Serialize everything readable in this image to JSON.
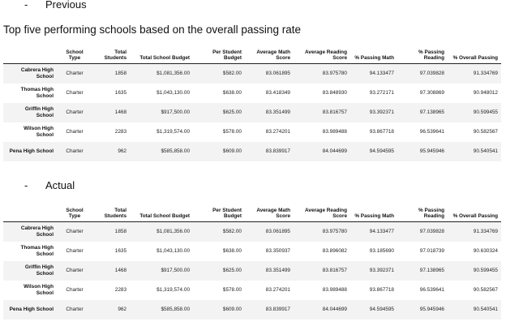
{
  "sections": [
    {
      "bullet": "Previous",
      "heading": "Top five performing schools based on the overall passing rate",
      "columns": [
        "",
        "School Type",
        "Total Students",
        "Total School Budget",
        "Per Student Budget",
        "Average Math Score",
        "Average Reading Score",
        "% Passing Math",
        "% Passing Reading",
        "% Overall Passing"
      ],
      "rows": [
        [
          "Cabrera High School",
          "Charter",
          "1858",
          "$1,081,356.00",
          "$582.00",
          "83.061895",
          "83.975780",
          "94.133477",
          "97.039828",
          "91.334769"
        ],
        [
          "Thomas High School",
          "Charter",
          "1635",
          "$1,043,130.00",
          "$638.00",
          "83.418349",
          "83.848930",
          "93.272171",
          "97.308869",
          "90.948012"
        ],
        [
          "Griffin High School",
          "Charter",
          "1468",
          "$917,500.00",
          "$625.00",
          "83.351499",
          "83.816757",
          "93.392371",
          "97.138965",
          "90.599455"
        ],
        [
          "Wilson High School",
          "Charter",
          "2283",
          "$1,319,574.00",
          "$578.00",
          "83.274201",
          "83.989488",
          "93.867718",
          "96.539641",
          "90.582567"
        ],
        [
          "Pena High School",
          "Charter",
          "962",
          "$585,858.00",
          "$609.00",
          "83.839917",
          "84.044699",
          "94.594595",
          "95.945946",
          "90.540541"
        ]
      ]
    },
    {
      "bullet": "Actual",
      "heading": "",
      "columns": [
        "",
        "School Type",
        "Total Students",
        "Total School Budget",
        "Per Student Budget",
        "Average Math Score",
        "Average Reading Score",
        "% Passing Math",
        "% Passing Reading",
        "% Overall Passing"
      ],
      "rows": [
        [
          "Cabrera High School",
          "Charter",
          "1858",
          "$1,081,356.00",
          "$582.00",
          "83.061895",
          "83.975780",
          "94.133477",
          "97.039828",
          "91.334769"
        ],
        [
          "Thomas High School",
          "Charter",
          "1635",
          "$1,043,130.00",
          "$638.00",
          "83.350937",
          "83.896082",
          "93.185690",
          "97.018739",
          "90.630324"
        ],
        [
          "Griffin High School",
          "Charter",
          "1468",
          "$917,500.00",
          "$625.00",
          "83.351499",
          "83.816757",
          "93.392371",
          "97.138965",
          "90.599455"
        ],
        [
          "Wilson High School",
          "Charter",
          "2283",
          "$1,319,574.00",
          "$578.00",
          "83.274201",
          "83.989488",
          "93.867718",
          "96.539641",
          "90.582567"
        ],
        [
          "Pena High School",
          "Charter",
          "962",
          "$585,858.00",
          "$609.00",
          "83.839917",
          "84.044699",
          "94.594595",
          "95.945946",
          "90.540541"
        ]
      ]
    }
  ]
}
